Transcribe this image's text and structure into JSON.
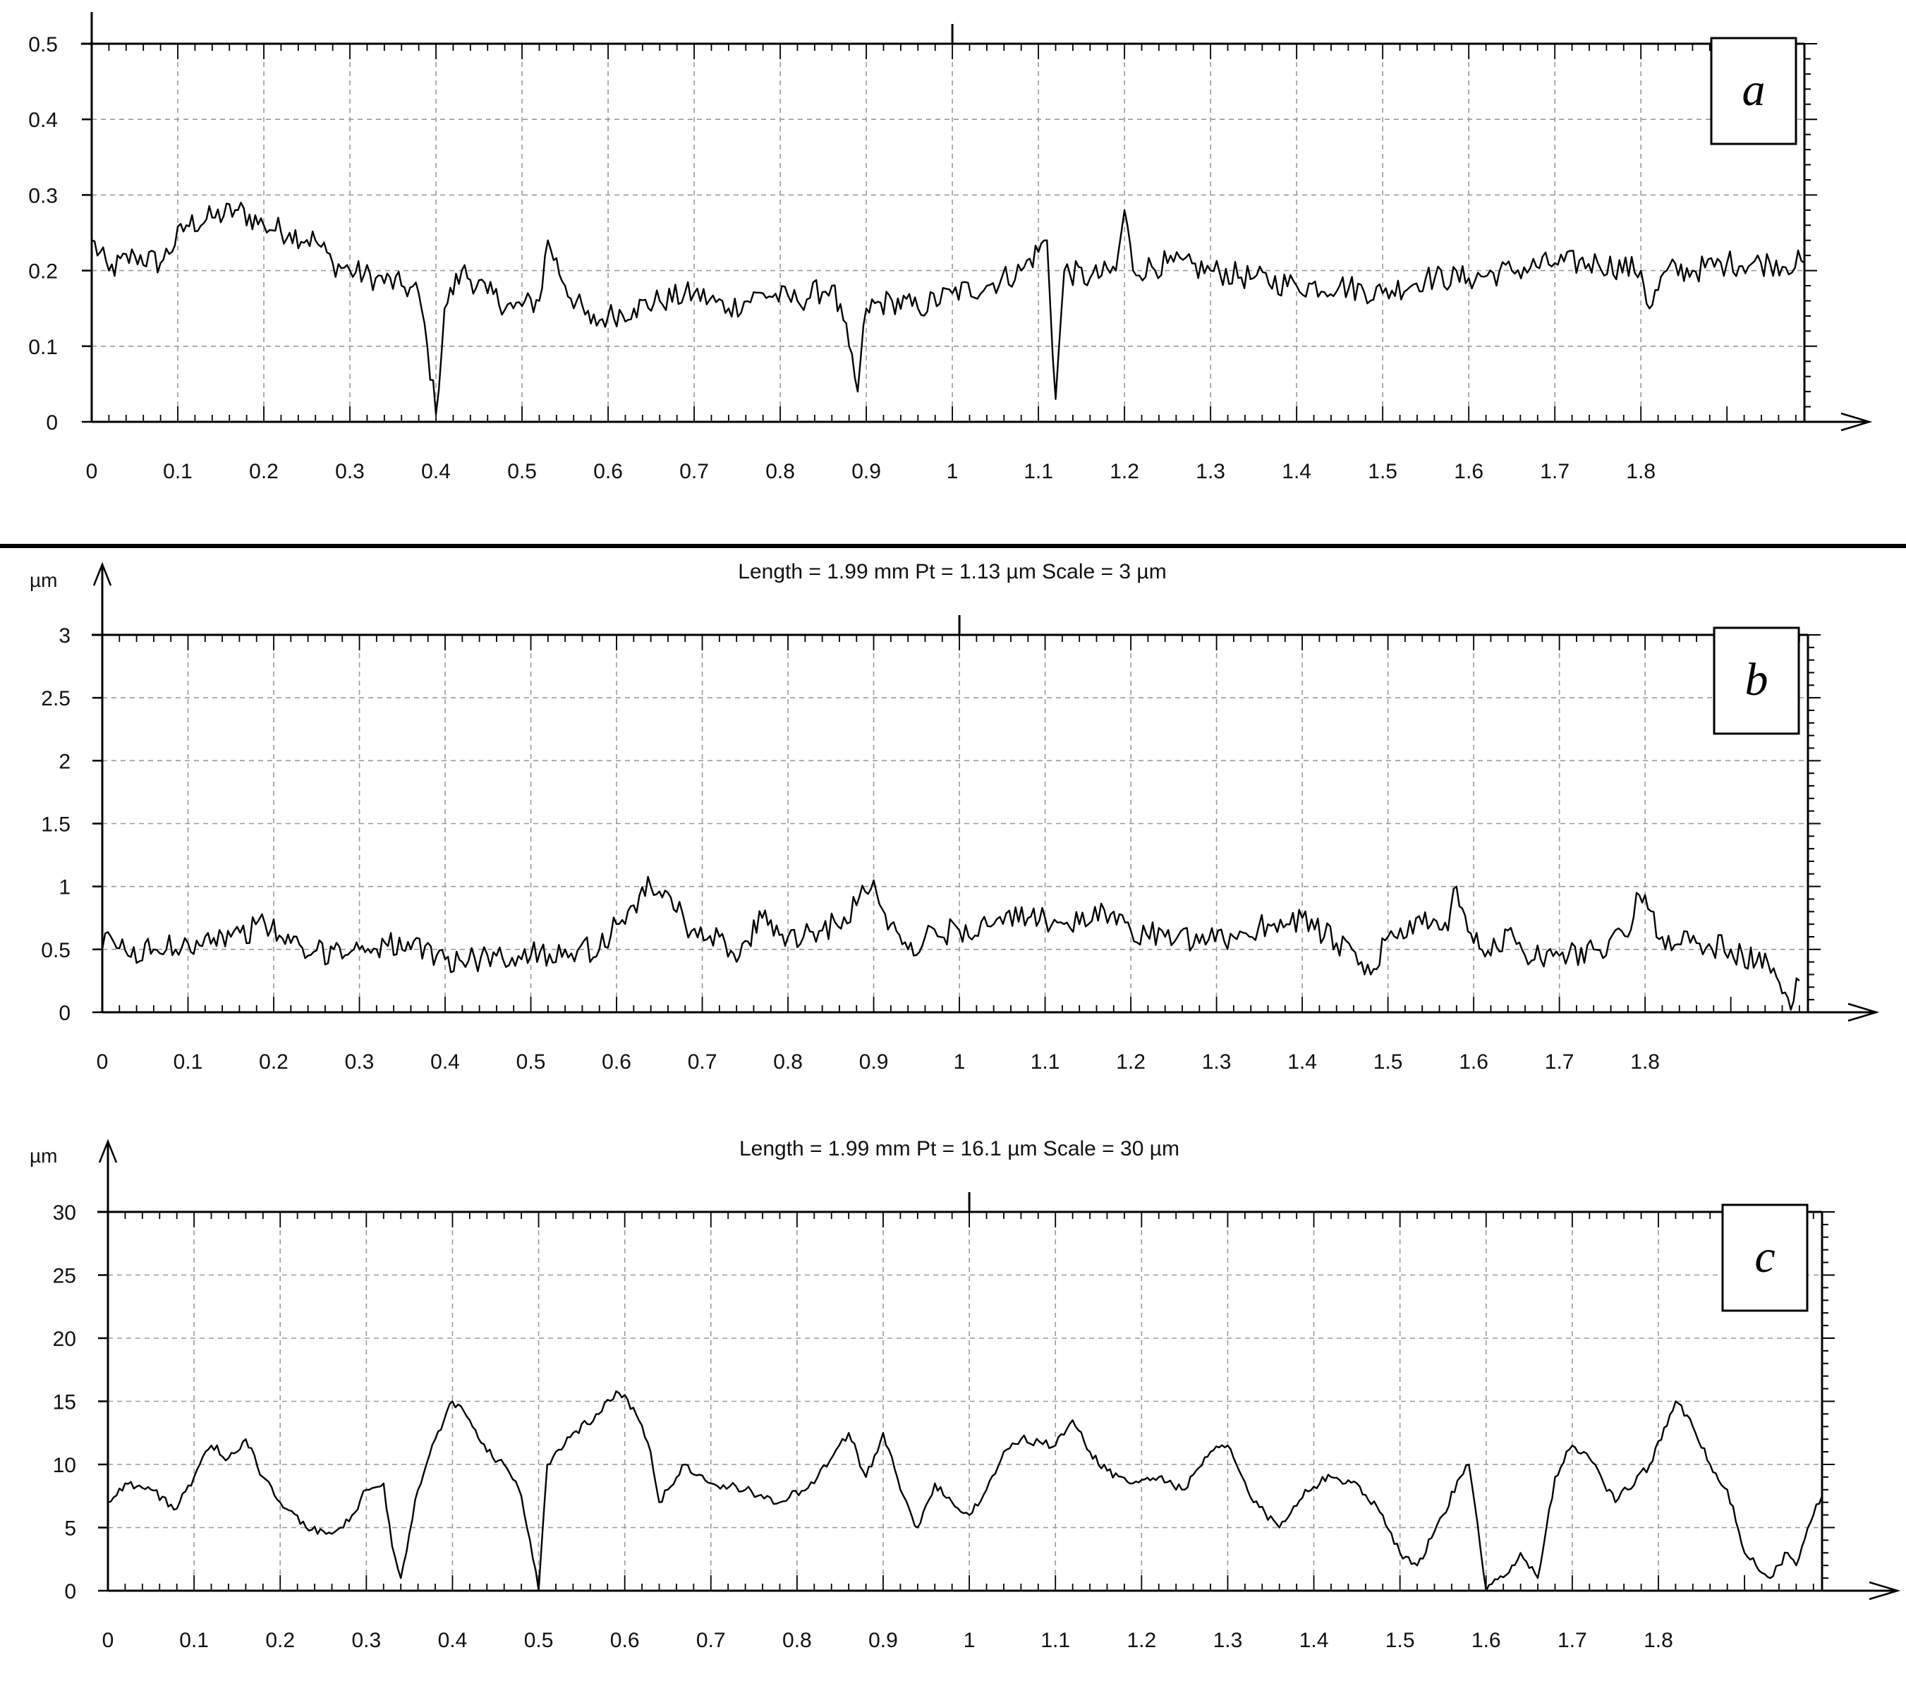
{
  "figure": {
    "panels": [
      {
        "id": "a",
        "letter": "a",
        "header": "",
        "unit": "",
        "x_ticks": [
          "0",
          "0.1",
          "0.2",
          "0.3",
          "0.4",
          "0.5",
          "0.6",
          "0.7",
          "0.8",
          "0.9",
          "1",
          "1.1",
          "1.2",
          "1.3",
          "1.4",
          "1.5",
          "1.6",
          "1.7",
          "1.8"
        ],
        "y_ticks": [
          "0",
          "0.1",
          "0.2",
          "0.3",
          "0.4",
          "0.5"
        ]
      },
      {
        "id": "b",
        "letter": "b",
        "header": "Length = 1.99 mm  Pt = 1.13 µm  Scale = 3 µm",
        "unit": "µm",
        "x_ticks": [
          "0",
          "0.1",
          "0.2",
          "0.3",
          "0.4",
          "0.5",
          "0.6",
          "0.7",
          "0.8",
          "0.9",
          "1",
          "1.1",
          "1.2",
          "1.3",
          "1.4",
          "1.5",
          "1.6",
          "1.7",
          "1.8"
        ],
        "y_ticks": [
          "0",
          "0.5",
          "1",
          "1.5",
          "2",
          "2.5",
          "3"
        ]
      },
      {
        "id": "c",
        "letter": "c",
        "header": "Length = 1.99 mm  Pt = 16.1 µm  Scale = 30 µm",
        "unit": "µm",
        "x_ticks": [
          "0",
          "0.1",
          "0.2",
          "0.3",
          "0.4",
          "0.5",
          "0.6",
          "0.7",
          "0.8",
          "0.9",
          "1",
          "1.1",
          "1.2",
          "1.3",
          "1.4",
          "1.5",
          "1.6",
          "1.7",
          "1.8"
        ],
        "y_ticks": [
          "0",
          "5",
          "10",
          "15",
          "20",
          "25",
          "30"
        ]
      }
    ]
  },
  "chart_data": [
    {
      "type": "line",
      "panel": "a",
      "title": "",
      "xlabel": "",
      "ylabel": "",
      "xlim": [
        0,
        1.99
      ],
      "ylim": [
        0,
        0.5
      ],
      "grid": true,
      "x_ticks": [
        0,
        0.1,
        0.2,
        0.3,
        0.4,
        0.5,
        0.6,
        0.7,
        0.8,
        0.9,
        1,
        1.1,
        1.2,
        1.3,
        1.4,
        1.5,
        1.6,
        1.7,
        1.8
      ],
      "y_ticks": [
        0,
        0.1,
        0.2,
        0.3,
        0.4,
        0.5
      ],
      "series": [
        {
          "x": [
            0,
            0.02,
            0.05,
            0.08,
            0.11,
            0.14,
            0.17,
            0.2,
            0.23,
            0.26,
            0.28,
            0.3,
            0.33,
            0.36,
            0.38,
            0.39,
            0.4,
            0.41,
            0.43,
            0.46,
            0.49,
            0.52,
            0.53,
            0.55,
            0.58,
            0.6,
            0.63,
            0.66,
            0.7,
            0.74,
            0.78,
            0.82,
            0.86,
            0.88,
            0.89,
            0.9,
            0.93,
            0.96,
            1.0,
            1.04,
            1.08,
            1.11,
            1.12,
            1.13,
            1.16,
            1.19,
            1.2,
            1.21,
            1.25,
            1.3,
            1.35,
            1.4,
            1.45,
            1.5,
            1.55,
            1.6,
            1.65,
            1.7,
            1.75,
            1.8,
            1.81,
            1.83,
            1.86,
            1.9,
            1.95,
            1.99
          ],
          "y": [
            0.24,
            0.2,
            0.22,
            0.21,
            0.26,
            0.27,
            0.28,
            0.26,
            0.25,
            0.24,
            0.21,
            0.2,
            0.19,
            0.18,
            0.17,
            0.1,
            0.01,
            0.15,
            0.2,
            0.17,
            0.15,
            0.16,
            0.24,
            0.18,
            0.13,
            0.14,
            0.15,
            0.16,
            0.17,
            0.15,
            0.17,
            0.16,
            0.18,
            0.1,
            0.04,
            0.15,
            0.16,
            0.15,
            0.17,
            0.18,
            0.2,
            0.24,
            0.03,
            0.2,
            0.19,
            0.2,
            0.28,
            0.2,
            0.21,
            0.2,
            0.19,
            0.18,
            0.18,
            0.17,
            0.19,
            0.19,
            0.2,
            0.21,
            0.21,
            0.2,
            0.15,
            0.2,
            0.2,
            0.21,
            0.21,
            0.21
          ]
        }
      ]
    },
    {
      "type": "line",
      "panel": "b",
      "title": "Length = 1.99 mm  Pt = 1.13 µm  Scale = 3 µm",
      "xlabel": "",
      "ylabel": "µm",
      "xlim": [
        0,
        1.99
      ],
      "ylim": [
        0,
        3
      ],
      "grid": true,
      "x_ticks": [
        0,
        0.1,
        0.2,
        0.3,
        0.4,
        0.5,
        0.6,
        0.7,
        0.8,
        0.9,
        1,
        1.1,
        1.2,
        1.3,
        1.4,
        1.5,
        1.6,
        1.7,
        1.8
      ],
      "y_ticks": [
        0,
        0.5,
        1,
        1.5,
        2,
        2.5,
        3
      ],
      "series": [
        {
          "x": [
            0,
            0.01,
            0.03,
            0.06,
            0.1,
            0.12,
            0.15,
            0.19,
            0.22,
            0.24,
            0.27,
            0.3,
            0.33,
            0.36,
            0.39,
            0.42,
            0.46,
            0.5,
            0.54,
            0.58,
            0.6,
            0.62,
            0.64,
            0.66,
            0.68,
            0.72,
            0.74,
            0.77,
            0.8,
            0.84,
            0.88,
            0.9,
            0.92,
            0.94,
            0.96,
            1.0,
            1.04,
            1.08,
            1.1,
            1.14,
            1.18,
            1.2,
            1.24,
            1.28,
            1.32,
            1.36,
            1.4,
            1.44,
            1.48,
            1.5,
            1.54,
            1.57,
            1.58,
            1.6,
            1.62,
            1.64,
            1.66,
            1.7,
            1.74,
            1.78,
            1.79,
            1.82,
            1.86,
            1.9,
            1.93,
            1.95,
            1.96,
            1.97,
            1.98
          ],
          "y": [
            0.5,
            0.6,
            0.45,
            0.5,
            0.55,
            0.6,
            0.6,
            0.7,
            0.55,
            0.45,
            0.5,
            0.5,
            0.55,
            0.5,
            0.45,
            0.4,
            0.45,
            0.45,
            0.5,
            0.5,
            0.7,
            0.85,
            1.0,
            0.95,
            0.7,
            0.6,
            0.4,
            0.75,
            0.6,
            0.65,
            0.85,
            1.05,
            0.7,
            0.5,
            0.6,
            0.65,
            0.7,
            0.75,
            0.75,
            0.7,
            0.8,
            0.65,
            0.6,
            0.55,
            0.6,
            0.7,
            0.75,
            0.55,
            0.3,
            0.6,
            0.7,
            0.65,
            1.0,
            0.55,
            0.45,
            0.65,
            0.45,
            0.45,
            0.5,
            0.6,
            0.95,
            0.6,
            0.55,
            0.5,
            0.4,
            0.35,
            0.15,
            0.02,
            0.25
          ]
        }
      ]
    },
    {
      "type": "line",
      "panel": "c",
      "title": "Length = 1.99 mm  Pt = 16.1 µm  Scale = 30 µm",
      "xlabel": "",
      "ylabel": "µm",
      "xlim": [
        0,
        1.99
      ],
      "ylim": [
        0,
        30
      ],
      "grid": true,
      "x_ticks": [
        0,
        0.1,
        0.2,
        0.3,
        0.4,
        0.5,
        0.6,
        0.7,
        0.8,
        0.9,
        1,
        1.1,
        1.2,
        1.3,
        1.4,
        1.5,
        1.6,
        1.7,
        1.8
      ],
      "y_ticks": [
        0,
        5,
        10,
        15,
        20,
        25,
        30
      ],
      "series": [
        {
          "x": [
            0,
            0.02,
            0.05,
            0.08,
            0.1,
            0.12,
            0.14,
            0.16,
            0.18,
            0.2,
            0.23,
            0.26,
            0.28,
            0.3,
            0.32,
            0.33,
            0.34,
            0.36,
            0.38,
            0.4,
            0.42,
            0.44,
            0.46,
            0.48,
            0.49,
            0.5,
            0.51,
            0.52,
            0.54,
            0.57,
            0.59,
            0.61,
            0.63,
            0.64,
            0.65,
            0.67,
            0.7,
            0.74,
            0.78,
            0.82,
            0.86,
            0.88,
            0.9,
            0.92,
            0.94,
            0.96,
            0.98,
            1.0,
            1.02,
            1.04,
            1.06,
            1.1,
            1.12,
            1.14,
            1.16,
            1.19,
            1.22,
            1.25,
            1.28,
            1.3,
            1.33,
            1.36,
            1.39,
            1.42,
            1.45,
            1.48,
            1.5,
            1.52,
            1.55,
            1.57,
            1.58,
            1.6,
            1.63,
            1.64,
            1.66,
            1.68,
            1.7,
            1.72,
            1.75,
            1.79,
            1.82,
            1.84,
            1.86,
            1.88,
            1.9,
            1.93,
            1.95,
            1.96,
            1.98,
            1.99
          ],
          "y": [
            7,
            8.5,
            8,
            6.5,
            9,
            11.5,
            10.5,
            12,
            9,
            7,
            5,
            4.5,
            5.5,
            8,
            8.5,
            3.5,
            1,
            8,
            12,
            15,
            13.5,
            11,
            10,
            7.5,
            4,
            0,
            10,
            11,
            12.5,
            14,
            15.8,
            14.5,
            11,
            7,
            8,
            10,
            8.5,
            8,
            7,
            8.5,
            12.5,
            9,
            12.5,
            8,
            5,
            8.5,
            7,
            6,
            8,
            11,
            12,
            11.5,
            13.5,
            11,
            9.5,
            8.5,
            9,
            8,
            11,
            11.5,
            7,
            5,
            8,
            9,
            8.5,
            6,
            3,
            2,
            6,
            9,
            10,
            0,
            2,
            3,
            1,
            9,
            11.5,
            10.5,
            7,
            10,
            15,
            13,
            10,
            8,
            3,
            1,
            3,
            2,
            6,
            7.5
          ]
        }
      ]
    }
  ]
}
